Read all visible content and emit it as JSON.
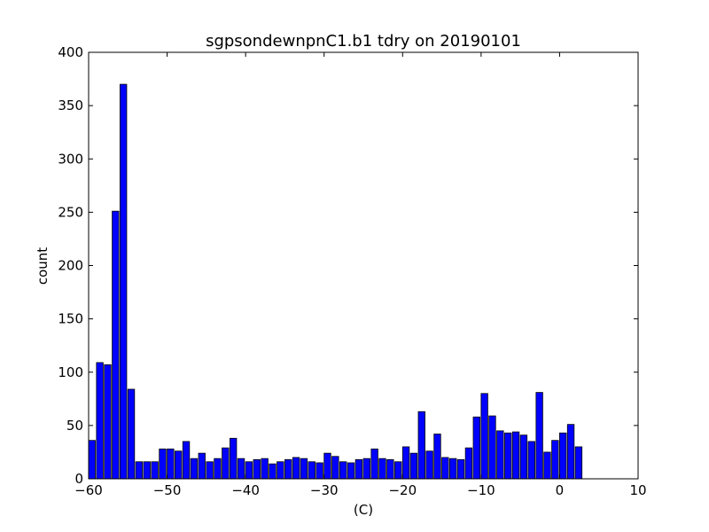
{
  "chart_data": {
    "type": "bar",
    "title": "sgpsondewnpnC1.b1 tdry on 20190101",
    "xlabel": "(C)",
    "ylabel": "count",
    "xlim": [
      -60,
      10
    ],
    "ylim": [
      0,
      400
    ],
    "xticks": [
      "−60",
      "−50",
      "−40",
      "−30",
      "−20",
      "−10",
      "0",
      "10"
    ],
    "yticks": [
      "0",
      "50",
      "100",
      "150",
      "200",
      "250",
      "300",
      "350",
      "400"
    ],
    "grid": false,
    "legend": "none",
    "bar_color": "#0000ff",
    "bin_width": 1,
    "x": [
      -60,
      -59,
      -58,
      -57,
      -56,
      -55,
      -54,
      -53,
      -52,
      -51,
      -50,
      -49,
      -48,
      -47,
      -46,
      -45,
      -44,
      -43,
      -42,
      -41,
      -40,
      -39,
      -38,
      -37,
      -36,
      -35,
      -34,
      -33,
      -32,
      -31,
      -30,
      -29,
      -28,
      -27,
      -26,
      -25,
      -24,
      -23,
      -22,
      -21,
      -20,
      -19,
      -18,
      -17,
      -16,
      -15,
      -14,
      -13,
      -12,
      -11,
      -10,
      -9,
      -8,
      -7,
      -6,
      -5,
      -4,
      -3,
      -2,
      -1,
      0,
      1,
      2,
      3,
      4,
      5,
      6,
      7,
      8,
      9
    ],
    "values": [
      36,
      109,
      107,
      251,
      370,
      84,
      16,
      16,
      16,
      28,
      28,
      26,
      35,
      19,
      24,
      16,
      19,
      29,
      38,
      19,
      16,
      18,
      19,
      14,
      16,
      18,
      20,
      19,
      16,
      15,
      24,
      21,
      16,
      15,
      18,
      19,
      28,
      19,
      18,
      16,
      30,
      24,
      63,
      26,
      42,
      20,
      19,
      18,
      29,
      58,
      80,
      59,
      45,
      43,
      44,
      41,
      35,
      81,
      25,
      36,
      43,
      51,
      30,
      0,
      0,
      0,
      0,
      0,
      0,
      0
    ]
  }
}
